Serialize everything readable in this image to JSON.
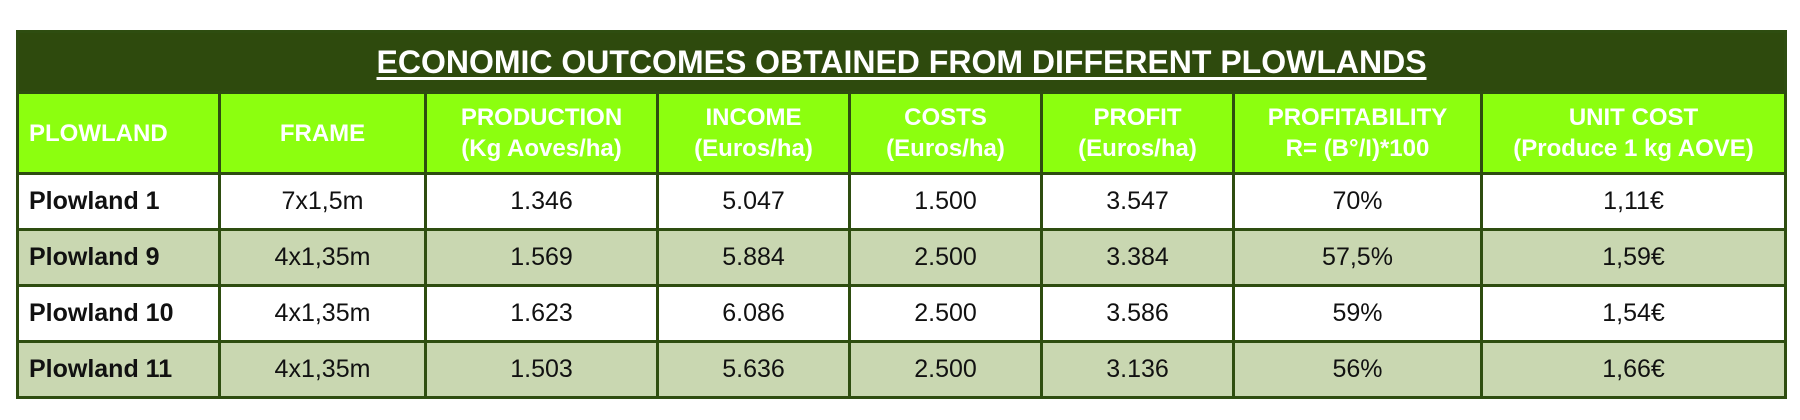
{
  "table": {
    "title": "ECONOMIC OUTCOMES OBTAINED FROM DIFFERENT PLOWLANDS",
    "headers": [
      {
        "line1": "PLOWLAND",
        "line2": ""
      },
      {
        "line1": "FRAME",
        "line2": ""
      },
      {
        "line1": "PRODUCTION",
        "line2": "(Kg Aoves/ha)"
      },
      {
        "line1": "INCOME",
        "line2": "(Euros/ha)"
      },
      {
        "line1": "COSTS",
        "line2": "(Euros/ha)"
      },
      {
        "line1": "PROFIT",
        "line2": "(Euros/ha)"
      },
      {
        "line1": "PROFITABILITY",
        "line2": "R= (B°/I)*100"
      },
      {
        "line1": "UNIT COST",
        "line2": "(Produce 1 kg AOVE)"
      }
    ],
    "rows": [
      [
        "Plowland 1",
        "7x1,5m",
        "1.346",
        "5.047",
        "1.500",
        "3.547",
        "70%",
        "1,11€"
      ],
      [
        "Plowland 9",
        "4x1,35m",
        "1.569",
        "5.884",
        "2.500",
        "3.384",
        "57,5%",
        "1,59€"
      ],
      [
        "Plowland 10",
        "4x1,35m",
        "1.623",
        "6.086",
        "2.500",
        "3.586",
        "59%",
        "1,54€"
      ],
      [
        "Plowland 11",
        "4x1,35m",
        "1.503",
        "5.636",
        "2.500",
        "3.136",
        "56%",
        "1,66€"
      ]
    ]
  },
  "colors": {
    "title_bg": "#2e4a0d",
    "header_bg": "#8cff0f",
    "row_alt_bg": "#c9d7b1",
    "border": "#2e4d10"
  }
}
